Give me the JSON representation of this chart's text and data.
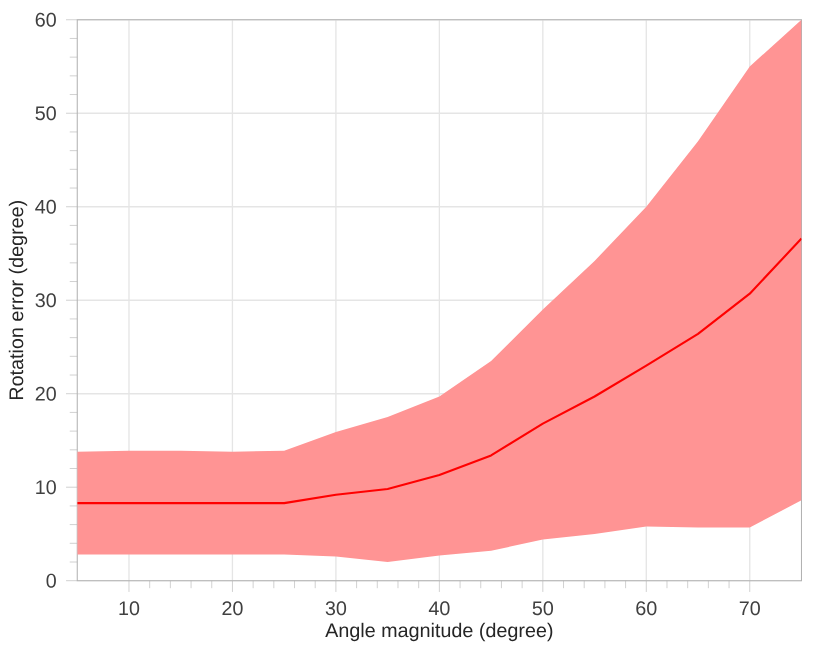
{
  "chart_data": {
    "type": "line",
    "xlabel": "Angle magnitude (degree)",
    "ylabel": "Rotation error (degree)",
    "x": [
      5,
      10,
      15,
      20,
      25,
      30,
      35,
      40,
      45,
      50,
      55,
      60,
      65,
      70,
      75
    ],
    "series": [
      {
        "color": "#ff0000",
        "values": [
          8.3,
          8.3,
          8.3,
          8.3,
          8.3,
          9.2,
          9.8,
          11.3,
          13.4,
          16.8,
          19.7,
          23,
          26.4,
          30.7,
          36.6
        ],
        "lower": [
          2.8,
          2.8,
          2.8,
          2.8,
          2.8,
          2.6,
          2.0,
          2.7,
          3.2,
          4.4,
          5.0,
          5.8,
          5.7,
          5.7,
          8.6
        ],
        "upper": [
          13.8,
          13.9,
          13.9,
          13.8,
          13.9,
          15.9,
          17.5,
          19.7,
          23.5,
          29,
          34.2,
          40,
          47,
          55,
          60
        ]
      }
    ],
    "xlim": [
      5,
      75
    ],
    "ylim": [
      0,
      60
    ],
    "xticks": [
      10,
      20,
      30,
      40,
      50,
      60,
      70
    ],
    "yticks": [
      0,
      10,
      20,
      30,
      40,
      50,
      60
    ],
    "grid": true,
    "marker": "none",
    "line_style": "solid"
  }
}
